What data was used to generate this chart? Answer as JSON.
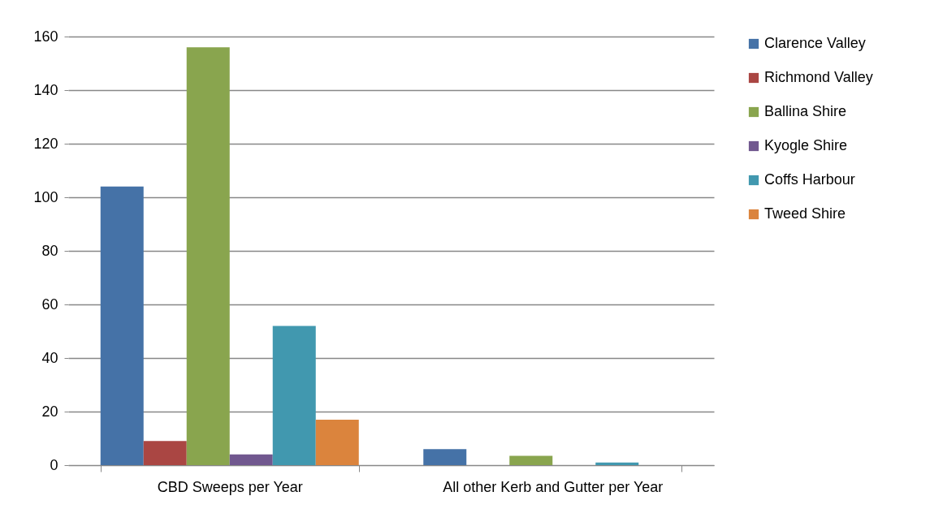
{
  "chart_data": {
    "type": "bar",
    "categories": [
      "CBD Sweeps per Year",
      "All other Kerb and Gutter per Year"
    ],
    "series": [
      {
        "name": "Clarence Valley",
        "color": "#4572a7",
        "values": [
          104,
          6
        ]
      },
      {
        "name": "Richmond Valley",
        "color": "#aa4643",
        "values": [
          9,
          0
        ]
      },
      {
        "name": "Ballina Shire",
        "color": "#89a54e",
        "values": [
          156,
          3.5
        ]
      },
      {
        "name": "Kyogle Shire",
        "color": "#71588f",
        "values": [
          4,
          0
        ]
      },
      {
        "name": "Coffs Harbour",
        "color": "#4198af",
        "values": [
          52,
          1
        ]
      },
      {
        "name": "Tweed Shire",
        "color": "#db843d",
        "values": [
          17,
          0
        ]
      }
    ],
    "ylim": [
      0,
      160
    ],
    "yticks": [
      0,
      20,
      40,
      60,
      80,
      100,
      120,
      140,
      160
    ],
    "grid": "y",
    "legend": "right"
  }
}
